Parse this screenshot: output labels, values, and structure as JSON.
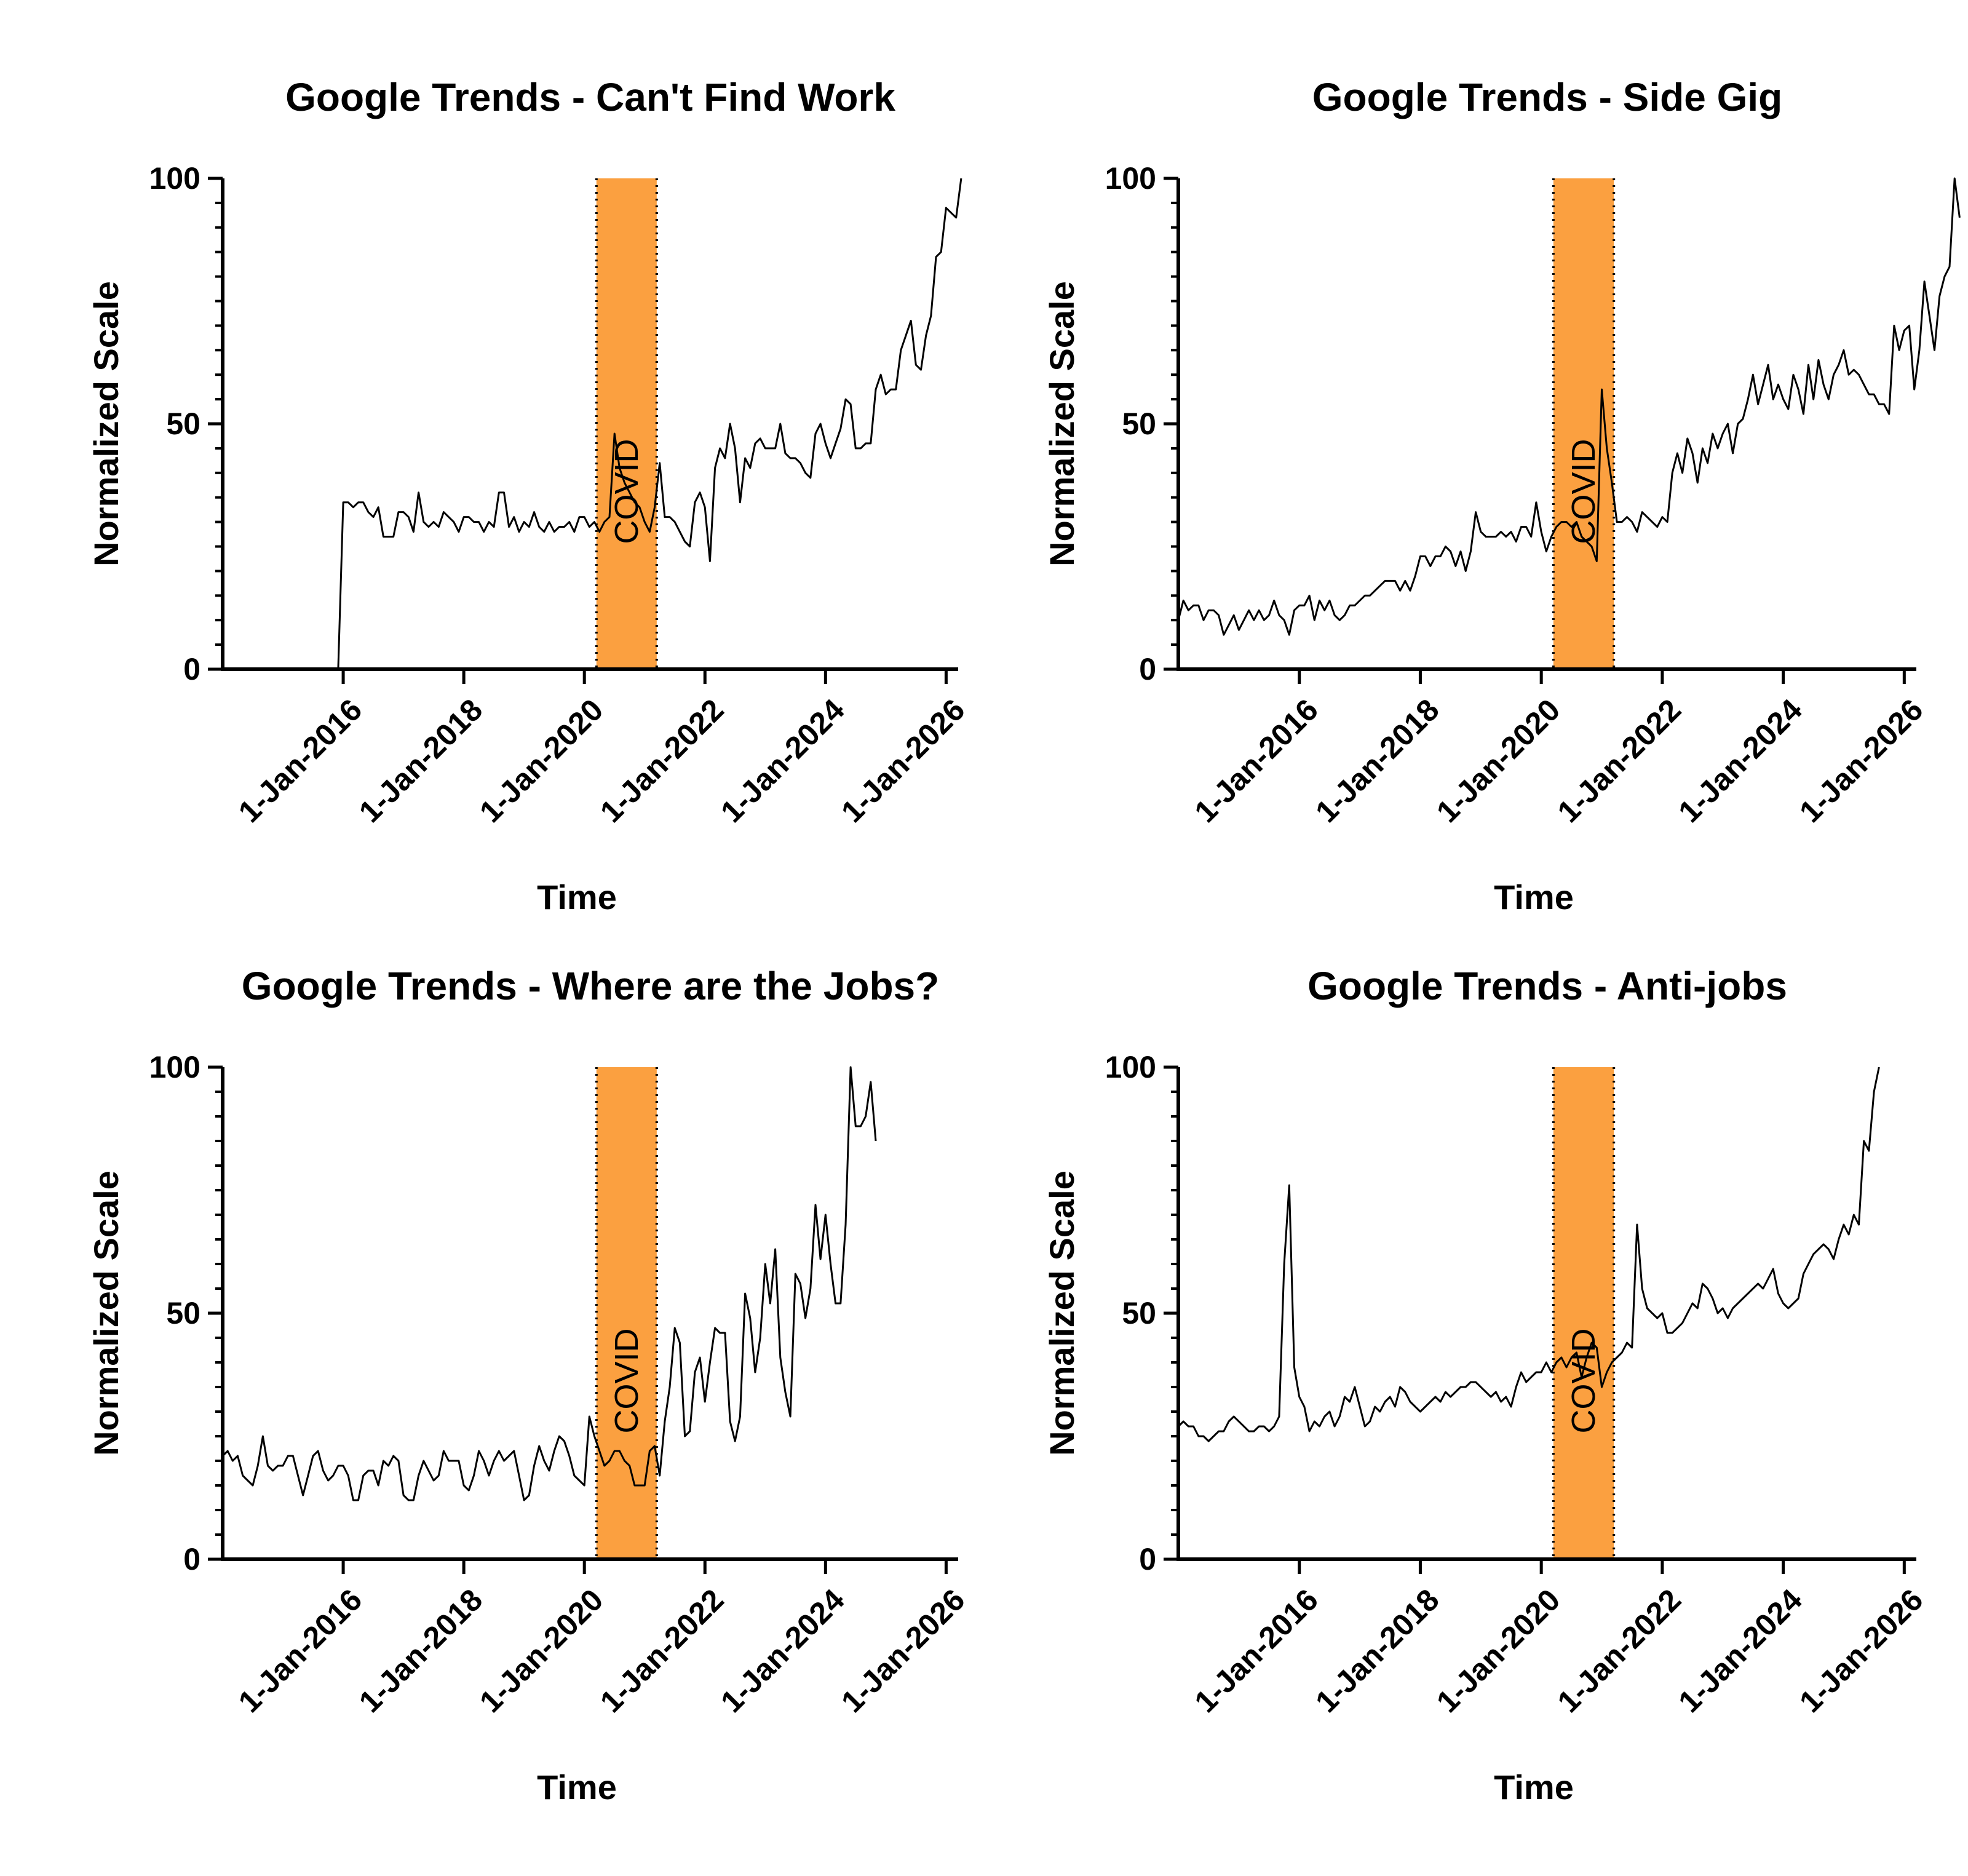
{
  "figure": {
    "shading_label": "COVID",
    "colors": {
      "covid": "#FBA040",
      "line": "#000000",
      "axis": "#000000"
    }
  },
  "chart_data": [
    {
      "type": "line",
      "title": "Google Trends - Can't Find Work",
      "xlabel": "Time",
      "ylabel": "Normalized Scale",
      "xlim": [
        2014.0,
        2026.2
      ],
      "ylim": [
        0,
        100
      ],
      "yticks": [
        0,
        50,
        100
      ],
      "xticks": [
        2016,
        2018,
        2020,
        2022,
        2024,
        2026
      ],
      "xtick_labels": [
        "1-Jan-2016",
        "1-Jan-2018",
        "1-Jan-2020",
        "1-Jan-2022",
        "1-Jan-2024",
        "1-Jan-2026"
      ],
      "shaded_region": {
        "label": "COVID",
        "x": [
          2020.2,
          2021.2
        ]
      },
      "x_start": 2014.0,
      "x_step": 0.08333,
      "series": [
        {
          "name": "Can't Find Work",
          "values": [
            0,
            0,
            0,
            0,
            0,
            0,
            0,
            0,
            0,
            0,
            0,
            0,
            0,
            0,
            0,
            0,
            0,
            0,
            0,
            0,
            0,
            0,
            0,
            0,
            34,
            34,
            33,
            34,
            34,
            32,
            31,
            33,
            27,
            27,
            27,
            32,
            32,
            31,
            28,
            36,
            30,
            29,
            30,
            29,
            32,
            31,
            30,
            28,
            31,
            31,
            30,
            30,
            28,
            30,
            29,
            36,
            36,
            29,
            31,
            28,
            30,
            29,
            32,
            29,
            28,
            30,
            28,
            29,
            29,
            30,
            28,
            31,
            31,
            29,
            30,
            28,
            30,
            31,
            48,
            41,
            38,
            36,
            34,
            33,
            30,
            28,
            33,
            42,
            31,
            31,
            30,
            28,
            26,
            25,
            34,
            36,
            33,
            22,
            41,
            45,
            43,
            50,
            45,
            34,
            43,
            41,
            46,
            47,
            45,
            45,
            45,
            50,
            44,
            43,
            43,
            42,
            40,
            39,
            48,
            50,
            46,
            43,
            46,
            49,
            55,
            54,
            45,
            45,
            46,
            46,
            57,
            60,
            56,
            57,
            57,
            65,
            68,
            71,
            62,
            61,
            68,
            72,
            84,
            85,
            94,
            93,
            92,
            100
          ]
        }
      ]
    },
    {
      "type": "line",
      "title": "Google Trends - Side Gig",
      "xlabel": "Time",
      "ylabel": "Normalized Scale",
      "xlim": [
        2014.0,
        2026.2
      ],
      "ylim": [
        0,
        100
      ],
      "yticks": [
        0,
        50,
        100
      ],
      "xticks": [
        2016,
        2018,
        2020,
        2022,
        2024,
        2026
      ],
      "xtick_labels": [
        "1-Jan-2016",
        "1-Jan-2018",
        "1-Jan-2020",
        "1-Jan-2022",
        "1-Jan-2024",
        "1-Jan-2026"
      ],
      "shaded_region": {
        "label": "COVID",
        "x": [
          2020.2,
          2021.2
        ]
      },
      "x_start": 2014.0,
      "x_step": 0.08333,
      "series": [
        {
          "name": "Side Gig",
          "values": [
            10,
            14,
            12,
            13,
            13,
            10,
            12,
            12,
            11,
            7,
            9,
            11,
            8,
            10,
            12,
            10,
            12,
            10,
            11,
            14,
            11,
            10,
            7,
            12,
            13,
            13,
            15,
            10,
            14,
            12,
            14,
            11,
            10,
            11,
            13,
            13,
            14,
            15,
            15,
            16,
            17,
            18,
            18,
            18,
            16,
            18,
            16,
            19,
            23,
            23,
            21,
            23,
            23,
            25,
            24,
            21,
            24,
            20,
            24,
            32,
            28,
            27,
            27,
            27,
            28,
            27,
            28,
            26,
            29,
            29,
            27,
            34,
            28,
            24,
            27,
            29,
            30,
            30,
            29,
            30,
            27,
            26,
            25,
            22,
            57,
            45,
            38,
            30,
            30,
            31,
            30,
            28,
            32,
            31,
            30,
            29,
            31,
            30,
            40,
            44,
            40,
            47,
            44,
            38,
            45,
            42,
            48,
            45,
            48,
            50,
            44,
            50,
            51,
            55,
            60,
            54,
            58,
            62,
            55,
            58,
            55,
            53,
            60,
            57,
            52,
            62,
            55,
            63,
            58,
            55,
            60,
            62,
            65,
            60,
            61,
            60,
            58,
            56,
            56,
            54,
            54,
            52,
            70,
            65,
            69,
            70,
            57,
            65,
            79,
            72,
            65,
            76,
            80,
            82,
            100,
            92
          ]
        }
      ]
    },
    {
      "type": "line",
      "title": "Google Trends - Where are the Jobs?",
      "xlabel": "Time",
      "ylabel": "Normalized Scale",
      "xlim": [
        2014.0,
        2026.2
      ],
      "ylim": [
        0,
        100
      ],
      "yticks": [
        0,
        50,
        100
      ],
      "xticks": [
        2016,
        2018,
        2020,
        2022,
        2024,
        2026
      ],
      "xtick_labels": [
        "1-Jan-2016",
        "1-Jan-2018",
        "1-Jan-2020",
        "1-Jan-2022",
        "1-Jan-2024",
        "1-Jan-2026"
      ],
      "shaded_region": {
        "label": "COVID",
        "x": [
          2020.2,
          2021.2
        ]
      },
      "x_start": 2014.0,
      "x_step": 0.08333,
      "series": [
        {
          "name": "Where are the Jobs?",
          "values": [
            21,
            22,
            20,
            21,
            17,
            16,
            15,
            19,
            25,
            19,
            18,
            19,
            19,
            21,
            21,
            17,
            13,
            17,
            21,
            22,
            18,
            16,
            17,
            19,
            19,
            17,
            12,
            12,
            17,
            18,
            18,
            15,
            20,
            19,
            21,
            20,
            13,
            12,
            12,
            17,
            20,
            18,
            16,
            17,
            22,
            20,
            20,
            20,
            15,
            14,
            17,
            22,
            20,
            17,
            20,
            22,
            20,
            21,
            22,
            17,
            12,
            13,
            19,
            23,
            20,
            18,
            22,
            25,
            24,
            21,
            17,
            16,
            15,
            29,
            25,
            22,
            19,
            20,
            22,
            22,
            20,
            19,
            15,
            15,
            15,
            22,
            23,
            17,
            28,
            35,
            47,
            44,
            25,
            26,
            38,
            41,
            32,
            40,
            47,
            46,
            46,
            28,
            24,
            29,
            54,
            49,
            38,
            45,
            60,
            52,
            63,
            41,
            34,
            29,
            58,
            56,
            49,
            55,
            72,
            61,
            70,
            60,
            52,
            52,
            68,
            100,
            88,
            88,
            90,
            97,
            85
          ]
        }
      ]
    },
    {
      "type": "line",
      "title": "Google Trends - Anti-jobs",
      "xlabel": "Time",
      "ylabel": "Normalized Scale",
      "xlim": [
        2014.0,
        2026.2
      ],
      "ylim": [
        0,
        100
      ],
      "yticks": [
        0,
        50,
        100
      ],
      "xticks": [
        2016,
        2018,
        2020,
        2022,
        2024,
        2026
      ],
      "xtick_labels": [
        "1-Jan-2016",
        "1-Jan-2018",
        "1-Jan-2020",
        "1-Jan-2022",
        "1-Jan-2024",
        "1-Jan-2026"
      ],
      "shaded_region": {
        "label": "COVID",
        "x": [
          2020.2,
          2021.2
        ]
      },
      "x_start": 2014.0,
      "x_step": 0.08333,
      "series": [
        {
          "name": "Anti-jobs",
          "values": [
            27,
            28,
            27,
            27,
            25,
            25,
            24,
            25,
            26,
            26,
            28,
            29,
            28,
            27,
            26,
            26,
            27,
            27,
            26,
            27,
            29,
            60,
            76,
            39,
            33,
            31,
            26,
            28,
            27,
            29,
            30,
            27,
            29,
            33,
            32,
            35,
            31,
            27,
            28,
            31,
            30,
            32,
            33,
            31,
            35,
            34,
            32,
            31,
            30,
            31,
            32,
            33,
            32,
            34,
            33,
            34,
            35,
            35,
            36,
            36,
            35,
            34,
            33,
            34,
            32,
            33,
            31,
            35,
            38,
            36,
            37,
            38,
            38,
            40,
            38,
            40,
            41,
            39,
            41,
            42,
            37,
            41,
            44,
            43,
            35,
            38,
            40,
            41,
            42,
            44,
            43,
            68,
            55,
            51,
            50,
            49,
            50,
            46,
            46,
            47,
            48,
            50,
            52,
            51,
            56,
            55,
            53,
            50,
            51,
            49,
            51,
            52,
            53,
            54,
            55,
            56,
            55,
            57,
            59,
            54,
            52,
            51,
            52,
            53,
            58,
            60,
            62,
            63,
            64,
            63,
            61,
            65,
            68,
            66,
            70,
            68,
            85,
            83,
            95,
            100
          ]
        }
      ]
    }
  ]
}
